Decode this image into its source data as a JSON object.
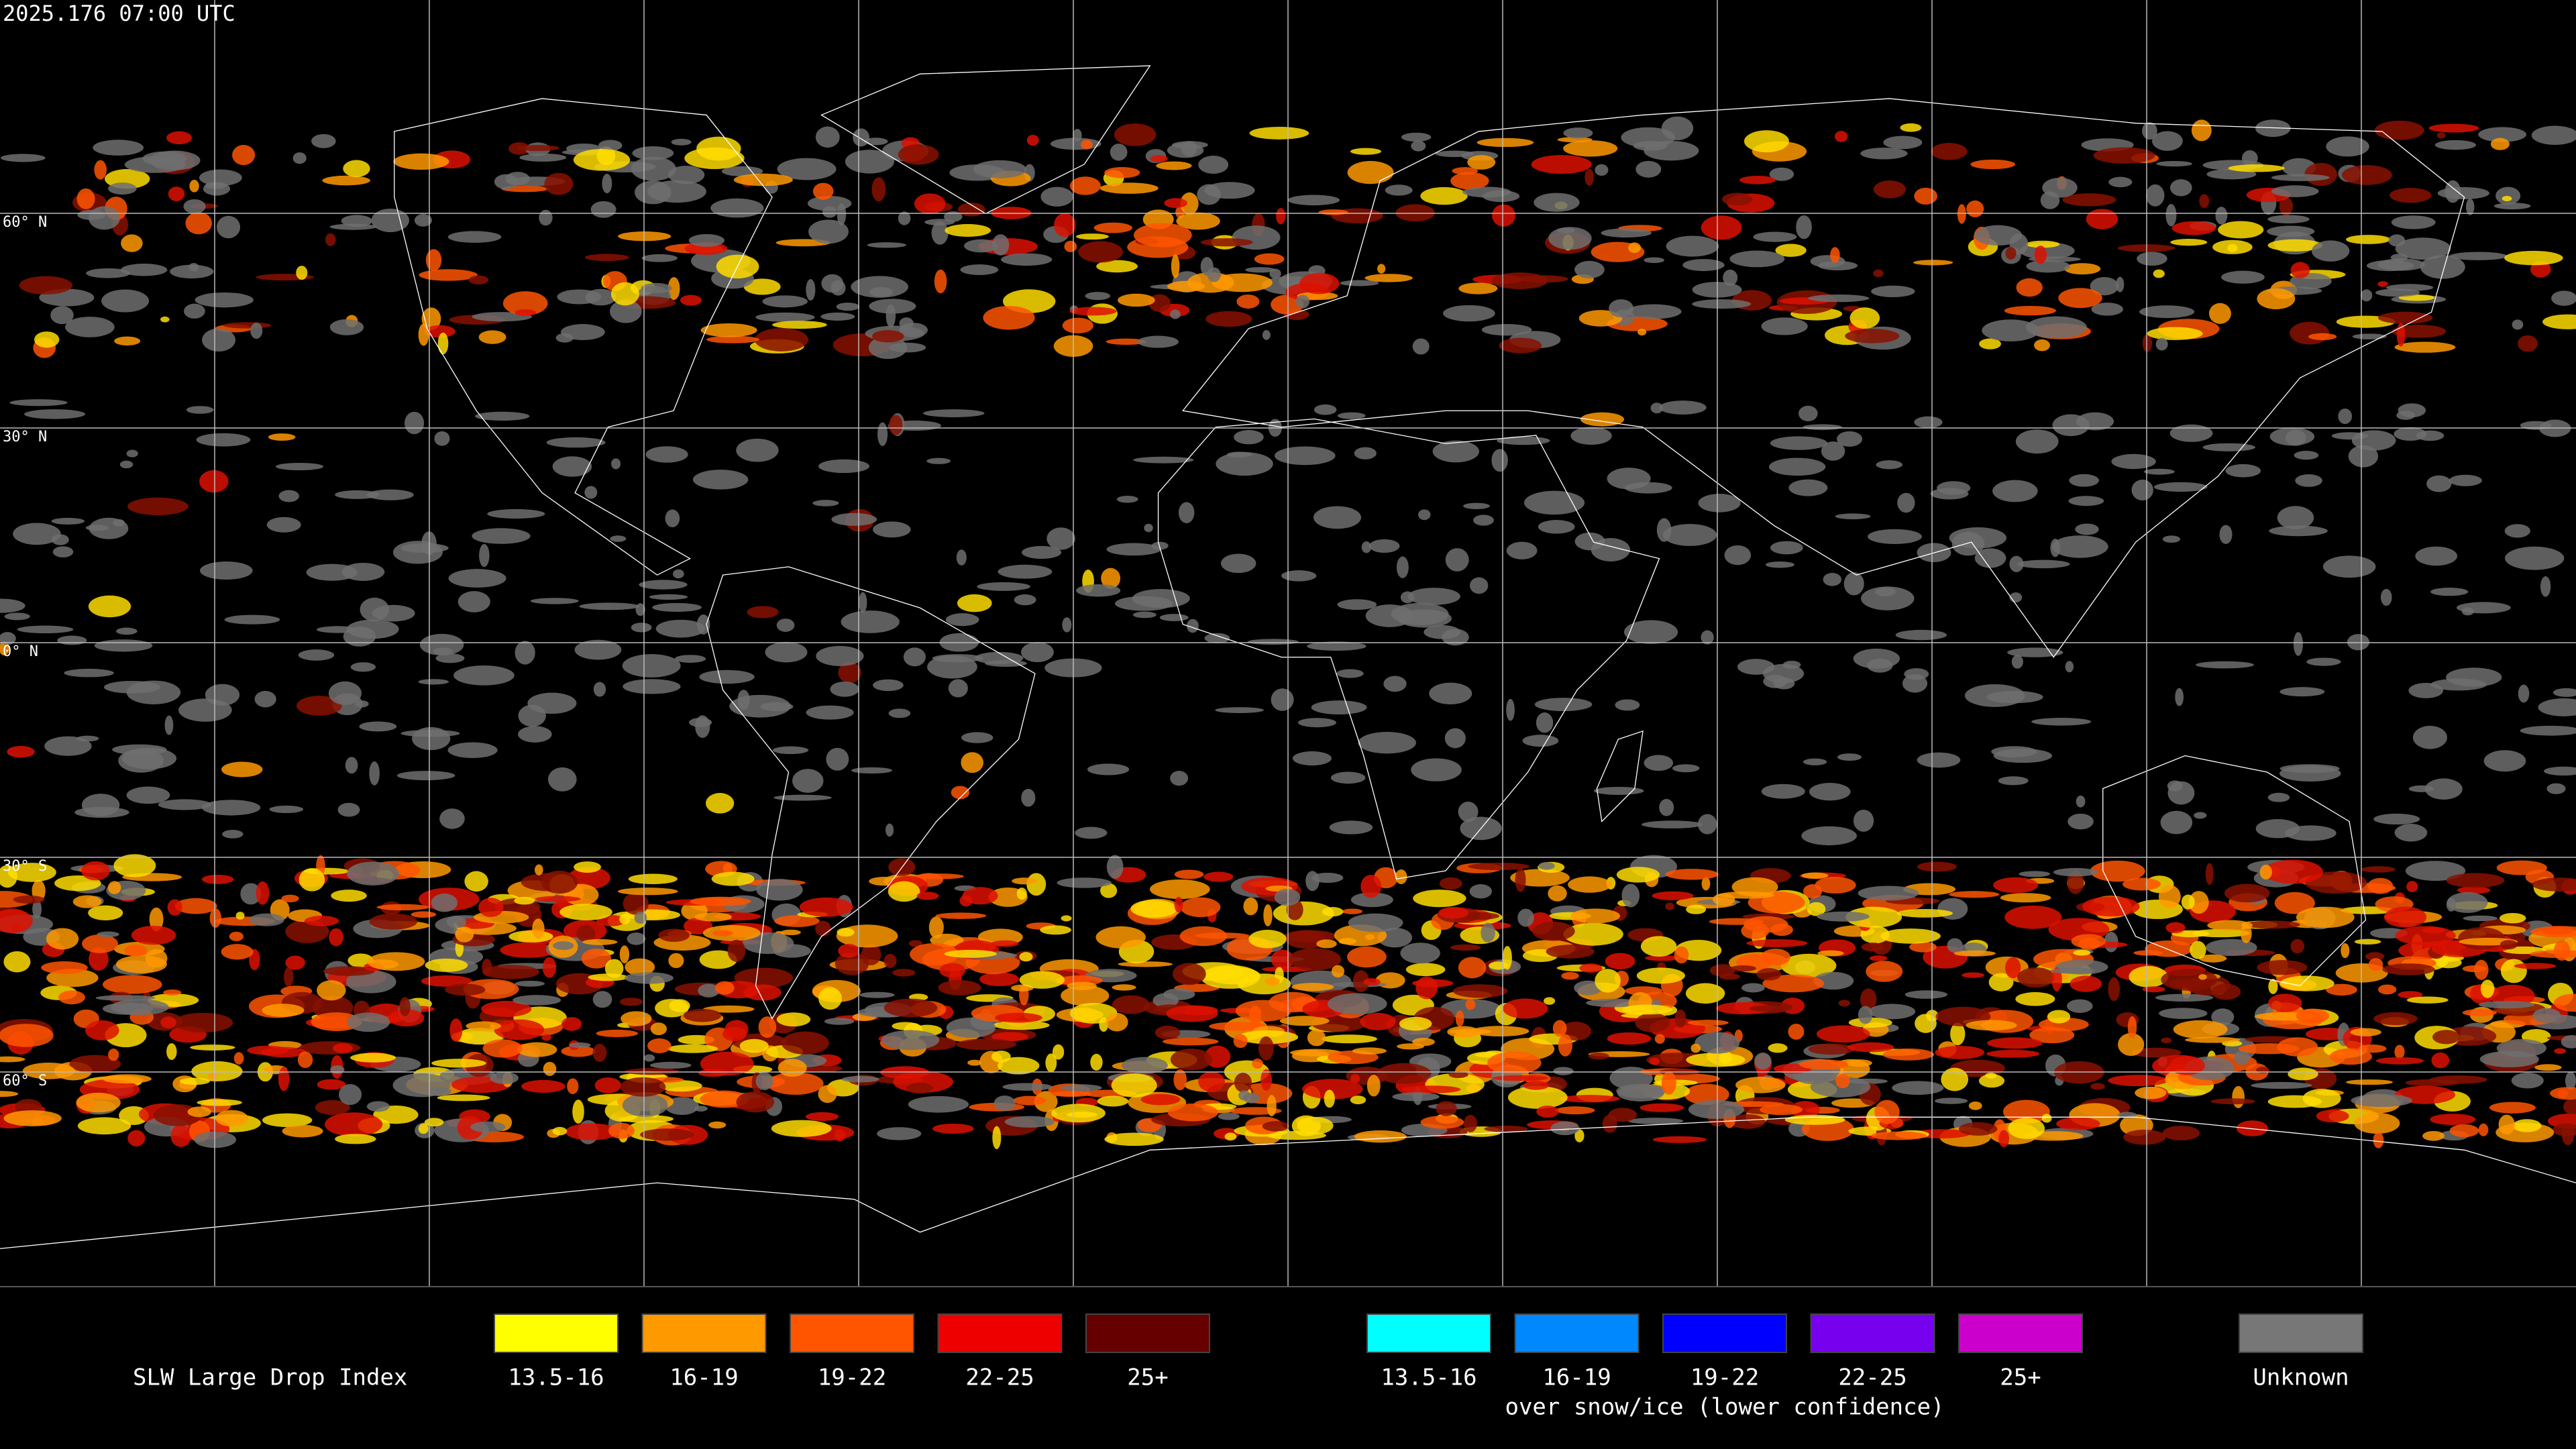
{
  "header": {
    "timestamp": "2025.176 07:00 UTC"
  },
  "map": {
    "lat_labels": [
      "60° N",
      "30° N",
      "0° N",
      "30° S",
      "60° S"
    ]
  },
  "legend": {
    "title": "SLW Large Drop Index",
    "items": [
      {
        "label": "13.5-16",
        "color": "#ffff00"
      },
      {
        "label": "16-19",
        "color": "#ff9900"
      },
      {
        "label": "19-22",
        "color": "#ff5500"
      },
      {
        "label": "22-25",
        "color": "#ee0000"
      },
      {
        "label": "25+",
        "color": "#660000"
      }
    ],
    "snow_items": [
      {
        "label": "13.5-16",
        "color": "#00ffff"
      },
      {
        "label": "16-19",
        "color": "#0088ff"
      },
      {
        "label": "19-22",
        "color": "#0000ff"
      },
      {
        "label": "22-25",
        "color": "#7700ee"
      },
      {
        "label": "25+",
        "color": "#cc00cc"
      }
    ],
    "snow_caption": "over snow/ice (lower confidence)",
    "unknown": {
      "label": "Unknown",
      "color": "#777777"
    }
  }
}
